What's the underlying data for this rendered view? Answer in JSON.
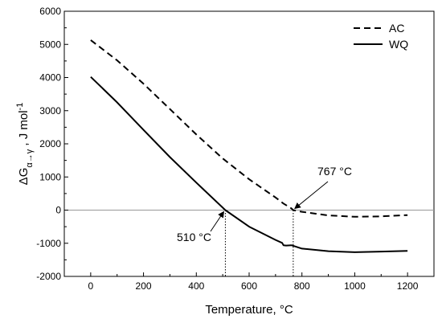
{
  "chart_data": {
    "type": "line",
    "xlabel": "Temperature, °C",
    "ylabel": {
      "main": "ΔG",
      "subscript": "α→γ",
      "rest": " , J mol",
      "superscript": "-1"
    },
    "xlim": [
      -100,
      1300
    ],
    "ylim": [
      -2000,
      6000
    ],
    "xticks": [
      0,
      200,
      400,
      600,
      800,
      1000,
      1200
    ],
    "yticks": [
      -2000,
      -1000,
      0,
      1000,
      2000,
      3000,
      4000,
      5000,
      6000
    ],
    "grid": false,
    "legend_position": "top-right",
    "zero_line": 0,
    "series": [
      {
        "name": "AC",
        "style": "dashed",
        "color": "#000000",
        "x": [
          0,
          100,
          200,
          300,
          400,
          500,
          600,
          700,
          730,
          760,
          767,
          800,
          900,
          1000,
          1100,
          1200
        ],
        "y": [
          5130,
          4520,
          3810,
          3050,
          2280,
          1560,
          930,
          380,
          200,
          50,
          0,
          -50,
          -160,
          -200,
          -190,
          -150
        ]
      },
      {
        "name": "WQ",
        "style": "solid",
        "color": "#000000",
        "x": [
          0,
          100,
          200,
          300,
          400,
          510,
          600,
          700,
          725,
          730,
          740,
          760,
          800,
          900,
          1000,
          1100,
          1200
        ],
        "y": [
          4020,
          3250,
          2420,
          1600,
          830,
          0,
          -500,
          -900,
          -990,
          -1060,
          -1070,
          -1060,
          -1160,
          -1240,
          -1270,
          -1250,
          -1230
        ]
      }
    ],
    "annotations": [
      {
        "text": "510 °C",
        "x": 510,
        "y": 0
      },
      {
        "text": "767 °C",
        "x": 767,
        "y": 0
      }
    ]
  }
}
